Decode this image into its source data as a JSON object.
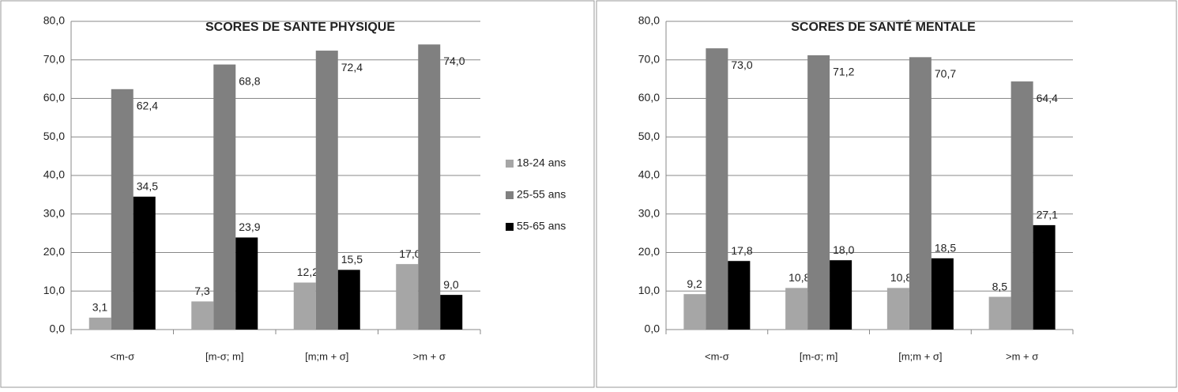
{
  "chart_data": [
    {
      "type": "bar",
      "title": "SCORES DE SANTE PHYSIQUE",
      "categories": [
        "<m-σ",
        "[m-σ; m]",
        "[m;m + σ]",
        ">m + σ"
      ],
      "series": [
        {
          "name": "18-24 ans",
          "color": "#a6a6a6",
          "values": [
            3.1,
            7.3,
            12.2,
            17.0
          ],
          "value_labels": [
            "3,1",
            "7,3",
            "12,2",
            "17,0"
          ]
        },
        {
          "name": "25-55 ans",
          "color": "#808080",
          "values": [
            62.4,
            68.8,
            72.4,
            74.0
          ],
          "value_labels": [
            "62,4",
            "68,8",
            "72,4",
            "74,0"
          ]
        },
        {
          "name": "55-65 ans",
          "color": "#000000",
          "values": [
            34.5,
            23.9,
            15.5,
            9.0
          ],
          "value_labels": [
            "34,5",
            "23,9",
            "15,5",
            "9,0"
          ]
        }
      ],
      "ylim": [
        0,
        80
      ],
      "yticks": [
        {
          "value": 0,
          "label": "0,0"
        },
        {
          "value": 10,
          "label": "10,0"
        },
        {
          "value": 20,
          "label": "20,0"
        },
        {
          "value": 30,
          "label": "30,0"
        },
        {
          "value": 40,
          "label": "40,0"
        },
        {
          "value": 50,
          "label": "50,0"
        },
        {
          "value": 60,
          "label": "60,0"
        },
        {
          "value": 70,
          "label": "70,0"
        },
        {
          "value": 80,
          "label": "80,0"
        }
      ],
      "grid": true,
      "legend": "right"
    },
    {
      "type": "bar",
      "title": "SCORES DE SANTÉ MENTALE",
      "categories": [
        "<m-σ",
        "[m-σ; m]",
        "[m;m + σ]",
        ">m + σ"
      ],
      "series": [
        {
          "color": "#a6a6a6",
          "values": [
            9.2,
            10.8,
            10.8,
            8.5
          ],
          "value_labels": [
            "9,2",
            "10,8",
            "10,8",
            "8,5"
          ]
        },
        {
          "color": "#808080",
          "values": [
            73.0,
            71.2,
            70.7,
            64.4
          ],
          "value_labels": [
            "73,0",
            "71,2",
            "70,7",
            "64,4"
          ]
        },
        {
          "color": "#000000",
          "values": [
            17.8,
            18.0,
            18.5,
            27.1
          ],
          "value_labels": [
            "17,8",
            "18,0",
            "18,5",
            "27,1"
          ]
        }
      ],
      "ylim": [
        0,
        80
      ],
      "yticks": [
        {
          "value": 0,
          "label": "0,0"
        },
        {
          "value": 10,
          "label": "10,0"
        },
        {
          "value": 20,
          "label": "20,0"
        },
        {
          "value": 30,
          "label": "30,0"
        },
        {
          "value": 40,
          "label": "40,0"
        },
        {
          "value": 50,
          "label": "50,0"
        },
        {
          "value": 60,
          "label": "60,0"
        },
        {
          "value": 70,
          "label": "70,0"
        },
        {
          "value": 80,
          "label": "80,0"
        }
      ],
      "grid": true
    }
  ]
}
